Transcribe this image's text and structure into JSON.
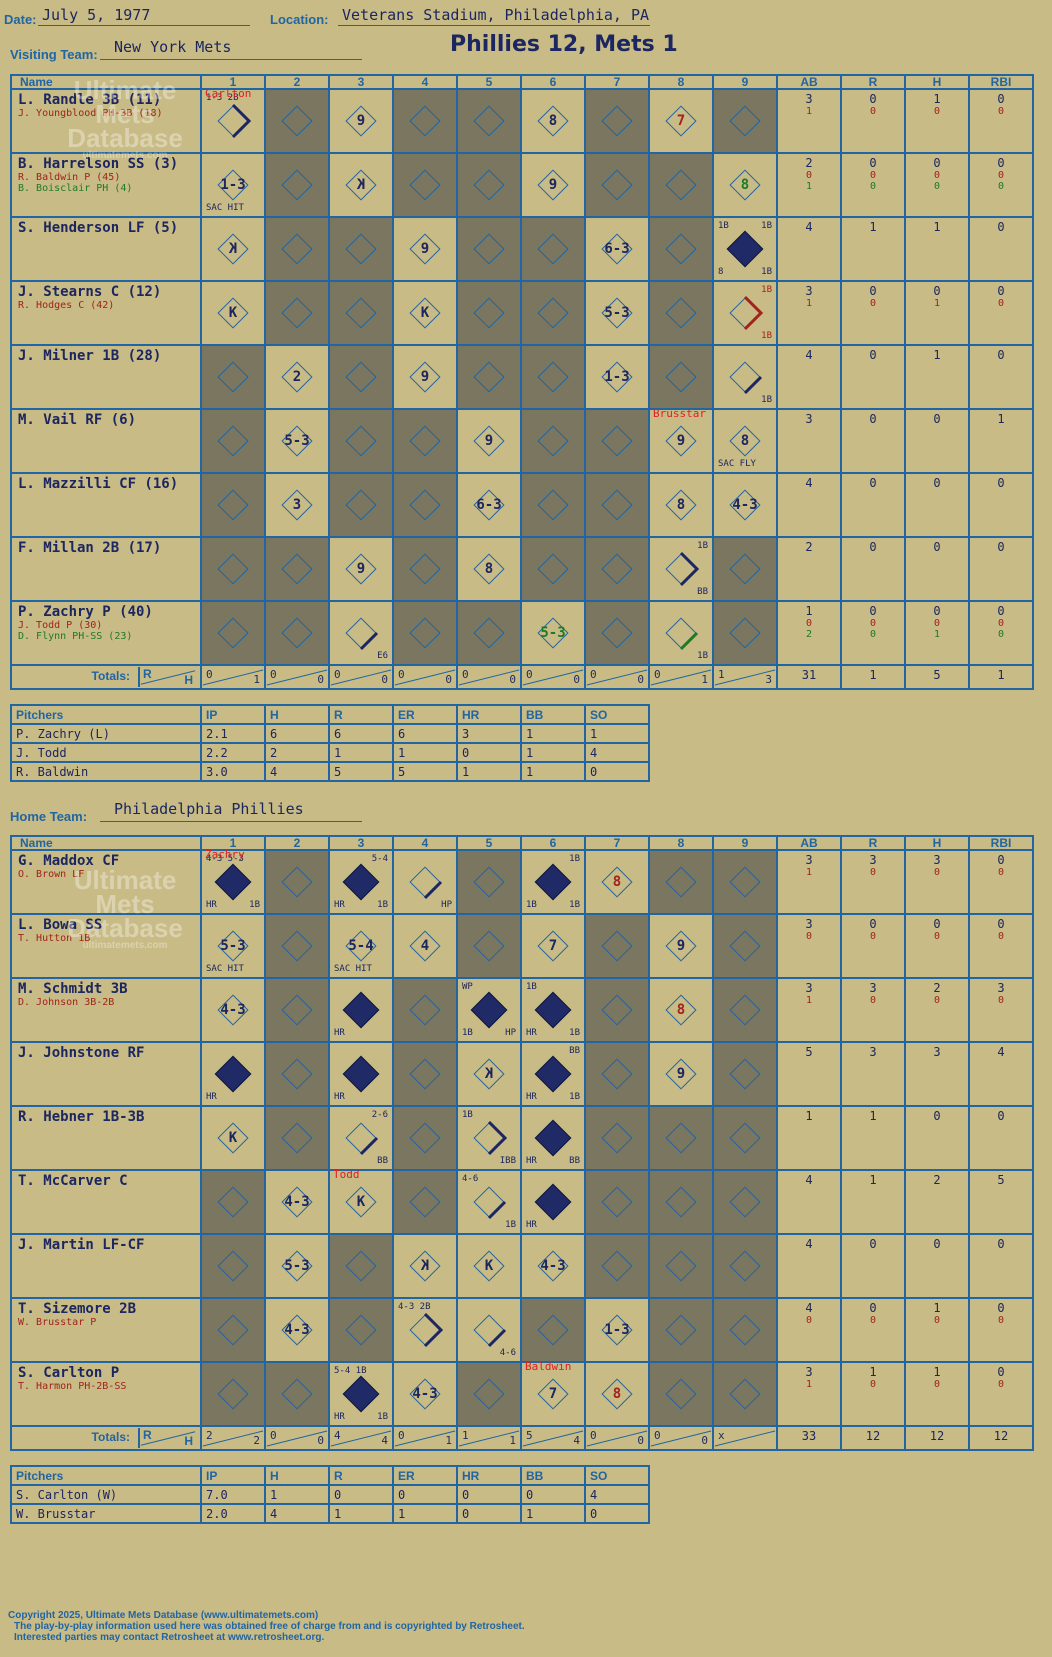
{
  "header": {
    "date_label": "Date:",
    "date": "July 5, 1977",
    "location_label": "Location:",
    "location": "Veterans Stadium, Philadelphia, PA",
    "visiting_label": "Visiting Team:",
    "visiting_team": "New York Mets",
    "title": "Phillies 12, Mets 1",
    "home_label": "Home Team:",
    "home_team": "Philadelphia Phillies"
  },
  "columns": {
    "name": "Name",
    "innings": [
      "1",
      "2",
      "3",
      "4",
      "5",
      "6",
      "7",
      "8",
      "9"
    ],
    "ab": "AB",
    "r": "R",
    "h": "H",
    "rbi": "RBI"
  },
  "watermark": {
    "line1": "Ultimate",
    "line2": "Mets",
    "line3": "Database",
    "url": "ultimatemets.com"
  },
  "visitors": {
    "rows": [
      {
        "name": "L. Randle 3B (11)",
        "subs": [
          {
            "t": "J. Youngblood PH-3B (18)",
            "c": "red"
          }
        ],
        "stats": [
          [
            "3",
            "0",
            "1",
            "0"
          ],
          [
            "1",
            "0",
            "0",
            "0"
          ]
        ]
      },
      {
        "name": "B. Harrelson SS (3)",
        "subs": [
          {
            "t": "R. Baldwin P (45)",
            "c": "red"
          },
          {
            "t": "B. Boisclair PH (4)",
            "c": "green"
          }
        ],
        "stats": [
          [
            "2",
            "0",
            "0",
            "0"
          ],
          [
            "0",
            "0",
            "0",
            "0"
          ],
          [
            "1",
            "0",
            "0",
            "0"
          ]
        ]
      },
      {
        "name": "S. Henderson LF (5)",
        "subs": [],
        "stats": [
          [
            "4",
            "1",
            "1",
            "0"
          ]
        ]
      },
      {
        "name": "J. Stearns C (12)",
        "subs": [
          {
            "t": "R. Hodges C (42)",
            "c": "red"
          }
        ],
        "stats": [
          [
            "3",
            "0",
            "0",
            "0"
          ],
          [
            "1",
            "0",
            "1",
            "0"
          ]
        ]
      },
      {
        "name": "J. Milner 1B (28)",
        "subs": [],
        "stats": [
          [
            "4",
            "0",
            "1",
            "0"
          ]
        ]
      },
      {
        "name": "M. Vail RF (6)",
        "subs": [],
        "stats": [
          [
            "3",
            "0",
            "0",
            "1"
          ]
        ]
      },
      {
        "name": "L. Mazzilli CF (16)",
        "subs": [],
        "stats": [
          [
            "4",
            "0",
            "0",
            "0"
          ]
        ]
      },
      {
        "name": "F. Millan 2B (17)",
        "subs": [],
        "stats": [
          [
            "2",
            "0",
            "0",
            "0"
          ]
        ]
      },
      {
        "name": "P. Zachry P (40)",
        "subs": [
          {
            "t": "J. Todd P (30)",
            "c": "red"
          },
          {
            "t": "D. Flynn PH-SS (23)",
            "c": "green"
          }
        ],
        "stats": [
          [
            "1",
            "0",
            "0",
            "0"
          ],
          [
            "0",
            "0",
            "0",
            "0"
          ],
          [
            "2",
            "0",
            "1",
            "0"
          ]
        ]
      }
    ],
    "totals_label": "Totals:",
    "rh": [
      "R",
      "H"
    ],
    "inning_totals": [
      [
        "0",
        "1"
      ],
      [
        "0",
        "0"
      ],
      [
        "0",
        "0"
      ],
      [
        "0",
        "0"
      ],
      [
        "0",
        "0"
      ],
      [
        "0",
        "0"
      ],
      [
        "0",
        "0"
      ],
      [
        "0",
        "1"
      ],
      [
        "1",
        "3"
      ]
    ],
    "totals": [
      "31",
      "1",
      "5",
      "1"
    ],
    "pitchers": {
      "headers": [
        "Pitchers",
        "IP",
        "H",
        "R",
        "ER",
        "HR",
        "BB",
        "SO"
      ],
      "rows": [
        [
          "P. Zachry (L)",
          "2.1",
          "6",
          "6",
          "6",
          "3",
          "1",
          "1"
        ],
        [
          "J. Todd",
          "2.2",
          "2",
          "1",
          "1",
          "0",
          "1",
          "4"
        ],
        [
          "R. Baldwin",
          "3.0",
          "4",
          "5",
          "5",
          "1",
          "1",
          "0"
        ]
      ]
    }
  },
  "home": {
    "rows": [
      {
        "name": "G. Maddox CF",
        "subs": [
          {
            "t": "O. Brown LF",
            "c": "red"
          }
        ],
        "stats": [
          [
            "3",
            "3",
            "3",
            "0"
          ],
          [
            "1",
            "0",
            "0",
            "0"
          ]
        ]
      },
      {
        "name": "L. Bowa SS",
        "subs": [
          {
            "t": "T. Hutton 1B",
            "c": "red"
          }
        ],
        "stats": [
          [
            "3",
            "0",
            "0",
            "0"
          ],
          [
            "0",
            "0",
            "0",
            "0"
          ]
        ]
      },
      {
        "name": "M. Schmidt 3B",
        "subs": [
          {
            "t": "D. Johnson 3B-2B",
            "c": "red"
          }
        ],
        "stats": [
          [
            "3",
            "3",
            "2",
            "3"
          ],
          [
            "1",
            "0",
            "0",
            "0"
          ]
        ]
      },
      {
        "name": "J. Johnstone RF",
        "subs": [],
        "stats": [
          [
            "5",
            "3",
            "3",
            "4"
          ]
        ]
      },
      {
        "name": "R. Hebner 1B-3B",
        "subs": [],
        "stats": [
          [
            "1",
            "1",
            "0",
            "0"
          ]
        ]
      },
      {
        "name": "T. McCarver C",
        "subs": [],
        "stats": [
          [
            "4",
            "1",
            "2",
            "5"
          ]
        ]
      },
      {
        "name": "J. Martin LF-CF",
        "subs": [],
        "stats": [
          [
            "4",
            "0",
            "0",
            "0"
          ]
        ]
      },
      {
        "name": "T. Sizemore 2B",
        "subs": [
          {
            "t": "W. Brusstar P",
            "c": "red"
          }
        ],
        "stats": [
          [
            "4",
            "0",
            "1",
            "0"
          ],
          [
            "0",
            "0",
            "0",
            "0"
          ]
        ]
      },
      {
        "name": "S. Carlton P",
        "subs": [
          {
            "t": "T. Harmon PH-2B-SS",
            "c": "red"
          }
        ],
        "stats": [
          [
            "3",
            "1",
            "1",
            "0"
          ],
          [
            "1",
            "0",
            "0",
            "0"
          ]
        ]
      }
    ],
    "totals_label": "Totals:",
    "rh": [
      "R",
      "H"
    ],
    "inning_totals": [
      [
        "2",
        "2"
      ],
      [
        "0",
        "0"
      ],
      [
        "4",
        "4"
      ],
      [
        "0",
        "1"
      ],
      [
        "1",
        "1"
      ],
      [
        "5",
        "4"
      ],
      [
        "0",
        "0"
      ],
      [
        "0",
        "0"
      ],
      [
        "x",
        ""
      ]
    ],
    "totals": [
      "33",
      "12",
      "12",
      "12"
    ],
    "pitchers": {
      "headers": [
        "Pitchers",
        "IP",
        "H",
        "R",
        "ER",
        "HR",
        "BB",
        "SO"
      ],
      "rows": [
        [
          "S. Carlton (W)",
          "7.0",
          "1",
          "0",
          "0",
          "0",
          "0",
          "4"
        ],
        [
          "W. Brusstar",
          "2.0",
          "4",
          "1",
          "1",
          "0",
          "1",
          "0"
        ]
      ]
    }
  },
  "visitor_plays": [
    [
      {
        "r": "",
        "p": "Carlton",
        "tl": "1-3 2B",
        "path": "2b"
      },
      {
        "dark": true
      },
      {
        "r": "9"
      },
      {
        "dark": true
      },
      {
        "dark": true
      },
      {
        "r": "8"
      },
      {
        "dark": true
      },
      {
        "r": "7",
        "c": "red"
      },
      {
        "dark": true
      }
    ],
    [
      {
        "r": "1-3",
        "bl": "SAC HIT"
      },
      {
        "dark": true
      },
      {
        "r": "K",
        "rev": true
      },
      {
        "dark": true
      },
      {
        "dark": true
      },
      {
        "r": "9"
      },
      {
        "dark": true
      },
      {
        "dark": true
      },
      {
        "r": "8",
        "c": "green"
      }
    ],
    [
      {
        "r": "K",
        "rev": true
      },
      {
        "dark": true
      },
      {
        "dark": true
      },
      {
        "r": "9"
      },
      {
        "dark": true
      },
      {
        "dark": true
      },
      {
        "r": "6-3"
      },
      {
        "dark": true
      },
      {
        "run": true,
        "tl": "1B",
        "tr": "1B",
        "bl": "8",
        "br": "1B"
      }
    ],
    [
      {
        "r": "K"
      },
      {
        "dark": true
      },
      {
        "dark": true
      },
      {
        "r": "K"
      },
      {
        "dark": true
      },
      {
        "dark": true
      },
      {
        "r": "5-3"
      },
      {
        "dark": true
      },
      {
        "r": "",
        "tr": "1B",
        "br": "1B",
        "c": "red",
        "path": "2b"
      }
    ],
    [
      {
        "dark": true
      },
      {
        "r": "2"
      },
      {
        "dark": true
      },
      {
        "r": "9"
      },
      {
        "dark": true
      },
      {
        "dark": true
      },
      {
        "r": "1-3"
      },
      {
        "dark": true
      },
      {
        "r": "",
        "br": "1B",
        "path": "1b"
      }
    ],
    [
      {
        "dark": true
      },
      {
        "r": "5-3"
      },
      {
        "dark": true
      },
      {
        "dark": true
      },
      {
        "r": "9"
      },
      {
        "dark": true
      },
      {
        "dark": true
      },
      {
        "r": "9",
        "p": "Brusstar"
      },
      {
        "r": "8",
        "bl": "SAC FLY"
      }
    ],
    [
      {
        "dark": true
      },
      {
        "r": "3"
      },
      {
        "dark": true
      },
      {
        "dark": true
      },
      {
        "r": "6-3"
      },
      {
        "dark": true
      },
      {
        "dark": true
      },
      {
        "r": "8"
      },
      {
        "r": "4-3"
      }
    ],
    [
      {
        "dark": true
      },
      {
        "dark": true
      },
      {
        "r": "9"
      },
      {
        "dark": true
      },
      {
        "r": "8"
      },
      {
        "dark": true
      },
      {
        "dark": true
      },
      {
        "r": "",
        "tr": "1B",
        "br": "BB",
        "path": "2b"
      },
      {
        "dark": true
      }
    ],
    [
      {
        "dark": true
      },
      {
        "dark": true
      },
      {
        "r": "",
        "br": "E6",
        "path": "1b"
      },
      {
        "dark": true
      },
      {
        "dark": true
      },
      {
        "r": "5-3",
        "c": "green"
      },
      {
        "dark": true
      },
      {
        "r": "",
        "br": "1B",
        "path": "1b",
        "c": "green"
      },
      {
        "dark": true
      }
    ]
  ],
  "home_plays": [
    [
      {
        "run": true,
        "p": "Zachry",
        "tl": "4-3 5-3",
        "bl": "HR",
        "br": "1B"
      },
      {
        "dark": true
      },
      {
        "run": true,
        "tr": "5-4",
        "bl": "HR",
        "br": "1B"
      },
      {
        "r": "",
        "br": "HP",
        "path": "1b"
      },
      {
        "dark": true
      },
      {
        "run": true,
        "tr": "1B",
        "bl": "1B",
        "br": "1B"
      },
      {
        "r": "8",
        "c": "red"
      },
      {
        "dark": true
      },
      {
        "dark": true
      }
    ],
    [
      {
        "r": "5-3",
        "bl": "SAC HIT"
      },
      {
        "dark": true
      },
      {
        "r": "5-4",
        "bl": "SAC HIT"
      },
      {
        "r": "4"
      },
      {
        "dark": true
      },
      {
        "r": "7"
      },
      {
        "dark": true
      },
      {
        "r": "9"
      },
      {
        "dark": true
      }
    ],
    [
      {
        "r": "4-3"
      },
      {
        "dark": true
      },
      {
        "run": true,
        "bl": "HR"
      },
      {
        "dark": true
      },
      {
        "run": true,
        "tl": "WP",
        "bl": "1B",
        "br": "HP"
      },
      {
        "run": true,
        "tl": "1B",
        "bl": "HR",
        "br": "1B"
      },
      {
        "dark": true
      },
      {
        "r": "8",
        "c": "red"
      },
      {
        "dark": true
      }
    ],
    [
      {
        "run": true,
        "bl": "HR"
      },
      {
        "dark": true
      },
      {
        "run": true,
        "bl": "HR"
      },
      {
        "dark": true
      },
      {
        "r": "K",
        "rev": true
      },
      {
        "run": true,
        "tr": "BB",
        "bl": "HR",
        "br": "1B"
      },
      {
        "dark": true
      },
      {
        "r": "9"
      },
      {
        "dark": true
      }
    ],
    [
      {
        "r": "K"
      },
      {
        "dark": true
      },
      {
        "r": "",
        "tr": "2-6",
        "br": "BB",
        "path": "1b"
      },
      {
        "dark": true
      },
      {
        "r": "",
        "tl": "1B",
        "br": "IBB",
        "path": "2b"
      },
      {
        "run": true,
        "bl": "HR",
        "br": "BB"
      },
      {
        "dark": true
      },
      {
        "dark": true
      },
      {
        "dark": true
      }
    ],
    [
      {
        "dark": true
      },
      {
        "r": "4-3"
      },
      {
        "r": "K",
        "p": "Todd"
      },
      {
        "dark": true
      },
      {
        "r": "",
        "tl": "4-6",
        "br": "1B",
        "path": "1b"
      },
      {
        "run": true,
        "bl": "HR"
      },
      {
        "dark": true
      },
      {
        "dark": true
      },
      {
        "dark": true
      }
    ],
    [
      {
        "dark": true
      },
      {
        "r": "5-3"
      },
      {
        "dark": true
      },
      {
        "r": "K",
        "rev": true
      },
      {
        "r": "K"
      },
      {
        "r": "4-3"
      },
      {
        "dark": true
      },
      {
        "dark": true
      },
      {
        "dark": true
      }
    ],
    [
      {
        "dark": true
      },
      {
        "r": "4-3"
      },
      {
        "dark": true
      },
      {
        "r": "",
        "tl": "4-3 2B",
        "path": "2b"
      },
      {
        "r": "",
        "br": "4-6",
        "path": "1b"
      },
      {
        "dark": true
      },
      {
        "r": "1-3"
      },
      {
        "dark": true
      },
      {
        "dark": true
      }
    ],
    [
      {
        "dark": true
      },
      {
        "dark": true
      },
      {
        "run": true,
        "tl": "5-4 1B",
        "bl": "HR",
        "br": "1B"
      },
      {
        "r": "4-3"
      },
      {
        "dark": true
      },
      {
        "r": "7",
        "p": "Baldwin"
      },
      {
        "r": "8",
        "c": "red"
      },
      {
        "dark": true
      },
      {
        "dark": true
      }
    ]
  ],
  "footer": {
    "line1": "Copyright 2025, Ultimate Mets Database (www.ultimatemets.com)",
    "line2": "The play-by-play information used here was obtained free of charge from and is copyrighted by Retrosheet.",
    "line3": "Interested parties may contact Retrosheet at www.retrosheet.org."
  },
  "colors": {
    "background": "#c8bb85",
    "grid": "#2165a3",
    "ink": "#1c2660",
    "sub_red": "#a2221c",
    "sub_green": "#1f7a28",
    "pitcher_change": "#e02020",
    "dark_cell": "#7a7660"
  }
}
